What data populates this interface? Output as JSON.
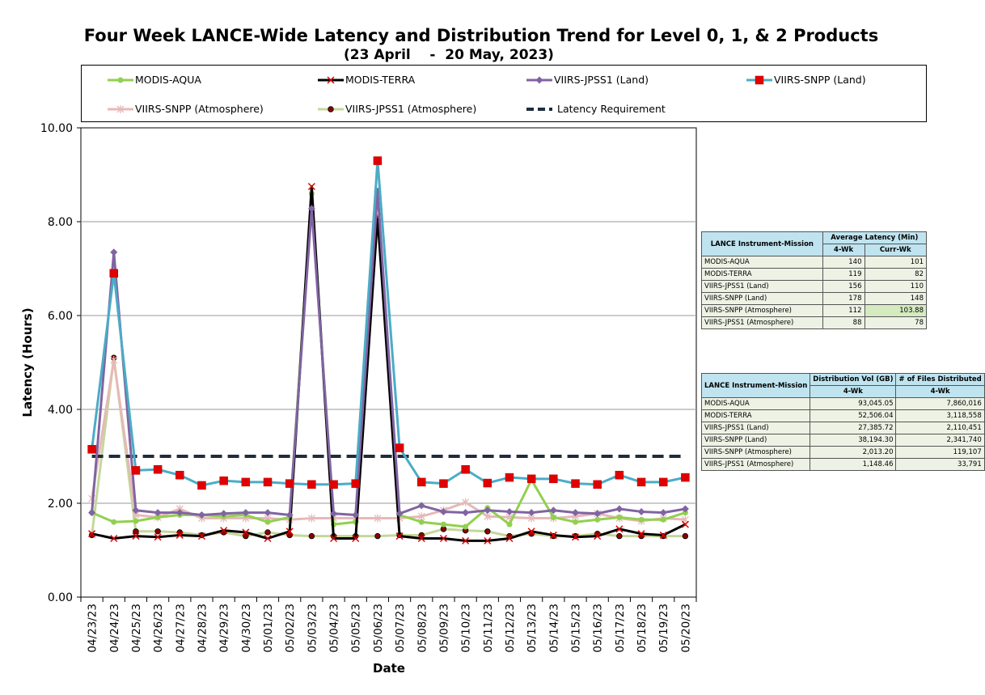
{
  "title": "Four Week LANCE-Wide Latency and Distribution Trend for Level 0, 1, & 2 Products",
  "subtitle": "(23 April    -  20 May, 2023)",
  "colors": {
    "modis_aqua": "#92d050",
    "modis_terra": "#000000",
    "viirs_jpss1_land": "#8064a2",
    "viirs_snpp_land": "#4bacc6",
    "viirs_snpp_atm": "#e6b9b8",
    "viirs_jpss1_atm": "#c4d79b",
    "latency_req": "#1f2d3d"
  },
  "chart_data": {
    "type": "line",
    "ylabel": "Latency (Hours)",
    "xlabel": "Date",
    "ylim": [
      0,
      10
    ],
    "yticks": [
      "0.00",
      "2.00",
      "4.00",
      "6.00",
      "8.00",
      "10.00"
    ],
    "grid": "horizontal",
    "legend_position": "top",
    "categories": [
      "04/23/23",
      "04/24/23",
      "04/25/23",
      "04/26/23",
      "04/27/23",
      "04/28/23",
      "04/29/23",
      "04/30/23",
      "05/01/23",
      "05/02/23",
      "05/03/23",
      "05/04/23",
      "05/05/23",
      "05/06/23",
      "05/07/23",
      "05/08/23",
      "05/09/23",
      "05/10/23",
      "05/11/23",
      "05/12/23",
      "05/13/23",
      "05/14/23",
      "05/15/23",
      "05/16/23",
      "05/17/23",
      "05/18/23",
      "05/19/23",
      "05/20/23"
    ],
    "series": [
      {
        "name": "MODIS-AQUA",
        "key": "modis_aqua",
        "marker": "circle",
        "values": [
          1.8,
          1.6,
          1.62,
          1.7,
          1.75,
          1.75,
          1.72,
          1.75,
          1.6,
          1.7,
          8.6,
          1.55,
          1.6,
          8.1,
          1.75,
          1.6,
          1.55,
          1.5,
          1.9,
          1.55,
          2.5,
          1.7,
          1.6,
          1.65,
          1.7,
          1.65,
          1.65,
          1.8
        ]
      },
      {
        "name": "MODIS-TERRA",
        "key": "modis_terra",
        "marker": "x",
        "values": [
          1.35,
          1.25,
          1.3,
          1.28,
          1.32,
          1.3,
          1.42,
          1.38,
          1.25,
          1.4,
          8.75,
          1.25,
          1.25,
          8.1,
          1.3,
          1.25,
          1.25,
          1.2,
          1.2,
          1.25,
          1.4,
          1.32,
          1.28,
          1.3,
          1.45,
          1.35,
          1.32,
          1.55
        ]
      },
      {
        "name": "VIIRS-JPSS1 (Land)",
        "key": "viirs_jpss1_land",
        "marker": "diamond",
        "values": [
          1.8,
          7.35,
          1.85,
          1.8,
          1.8,
          1.75,
          1.78,
          1.8,
          1.8,
          1.75,
          8.28,
          1.78,
          1.75,
          8.65,
          1.78,
          1.95,
          1.82,
          1.8,
          1.85,
          1.82,
          1.8,
          1.85,
          1.8,
          1.78,
          1.88,
          1.82,
          1.8,
          1.88
        ]
      },
      {
        "name": "VIIRS-SNPP (Land)",
        "key": "viirs_snpp_land",
        "marker": "square",
        "values": [
          3.15,
          6.9,
          2.7,
          2.72,
          2.6,
          2.38,
          2.48,
          2.45,
          2.45,
          2.42,
          2.4,
          2.4,
          2.42,
          9.3,
          3.18,
          2.45,
          2.42,
          2.72,
          2.43,
          2.55,
          2.52,
          2.52,
          2.42,
          2.4,
          2.6,
          2.45,
          2.45,
          2.55
        ]
      },
      {
        "name": "VIIRS-SNPP (Atmosphere)",
        "key": "viirs_snpp_atm",
        "marker": "star",
        "values": [
          2.1,
          5.05,
          1.75,
          1.7,
          1.88,
          1.68,
          1.68,
          1.68,
          1.68,
          1.65,
          1.68,
          1.68,
          1.68,
          1.68,
          1.68,
          1.72,
          1.85,
          2.02,
          1.72,
          1.7,
          1.68,
          1.68,
          1.72,
          1.78,
          1.68,
          1.62,
          1.68,
          1.65
        ]
      },
      {
        "name": "VIIRS-JPSS1 (Atmosphere)",
        "key": "viirs_jpss1_atm",
        "marker": "dot",
        "values": [
          1.32,
          5.1,
          1.4,
          1.4,
          1.38,
          1.32,
          1.38,
          1.3,
          1.38,
          1.32,
          1.3,
          1.3,
          1.3,
          1.3,
          1.32,
          1.32,
          1.45,
          1.42,
          1.4,
          1.3,
          1.35,
          1.3,
          1.3,
          1.35,
          1.3,
          1.3,
          1.3,
          1.3
        ]
      },
      {
        "name": "Latency Requirement",
        "key": "latency_req",
        "marker": "none",
        "dashed": true,
        "values": [
          3,
          3,
          3,
          3,
          3,
          3,
          3,
          3,
          3,
          3,
          3,
          3,
          3,
          3,
          3,
          3,
          3,
          3,
          3,
          3,
          3,
          3,
          3,
          3,
          3,
          3,
          3,
          3
        ]
      }
    ]
  },
  "latency_table": {
    "header_mission": "LANCE Instrument-Mission",
    "header_avg": "Average Latency (Min)",
    "col1": "4-Wk",
    "col2": "Curr-Wk",
    "rows": [
      {
        "name": "MODIS-AQUA",
        "a": "140",
        "b": "101"
      },
      {
        "name": "MODIS-TERRA",
        "a": "119",
        "b": "82"
      },
      {
        "name": "VIIRS-JPSS1 (Land)",
        "a": "156",
        "b": "110"
      },
      {
        "name": "VIIRS-SNPP (Land)",
        "a": "178",
        "b": "148"
      },
      {
        "name": "VIIRS-SNPP (Atmosphere)",
        "a": "112",
        "b": "103.88"
      },
      {
        "name": "VIIRS-JPSS1 (Atmosphere)",
        "a": "88",
        "b": "78"
      }
    ]
  },
  "distribution_table": {
    "header_mission": "LANCE Instrument-Mission",
    "header_vol": "Distribution Vol (GB)",
    "header_files": "# of Files Distributed",
    "col1": "4-Wk",
    "col2": "4-Wk",
    "rows": [
      {
        "name": "MODIS-AQUA",
        "a": "93,045.05",
        "b": "7,860,016"
      },
      {
        "name": "MODIS-TERRA",
        "a": "52,506.04",
        "b": "3,118,558"
      },
      {
        "name": "VIIRS-JPSS1 (Land)",
        "a": "27,385.72",
        "b": "2,110,451"
      },
      {
        "name": "VIIRS-SNPP (Land)",
        "a": "38,194.30",
        "b": "2,341,740"
      },
      {
        "name": "VIIRS-SNPP (Atmosphere)",
        "a": "2,013.20",
        "b": "119,107"
      },
      {
        "name": "VIIRS-JPSS1 (Atmosphere)",
        "a": "1,148.46",
        "b": "33,791"
      }
    ]
  }
}
